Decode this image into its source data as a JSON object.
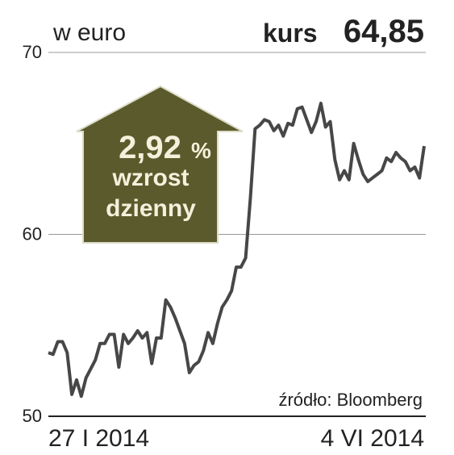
{
  "chart_data": {
    "type": "line",
    "unit_label": "w euro",
    "price_label": "kurs",
    "price_value": "64,85",
    "badge": {
      "value": "2,92",
      "unit": "%",
      "line1": "wzrost",
      "line2": "dzienny"
    },
    "source": "źródło: Bloomberg",
    "categories": [
      "27 I 2014",
      null,
      null,
      null,
      null,
      null,
      null,
      null,
      null,
      null,
      null,
      null,
      null,
      null,
      null,
      null,
      null,
      null,
      null,
      null,
      null,
      null,
      null,
      null,
      null,
      null,
      null,
      null,
      null,
      null,
      null,
      null,
      null,
      null,
      null,
      null,
      null,
      null,
      null,
      null,
      null,
      null,
      null,
      null,
      null,
      null,
      null,
      null,
      null,
      null,
      null,
      null,
      null,
      null,
      null,
      null,
      null,
      null,
      null,
      null,
      null,
      null,
      null,
      null,
      null,
      null,
      null,
      null,
      null,
      null,
      null,
      null,
      null,
      null,
      null,
      null,
      null,
      null,
      null,
      null,
      "4 VI 2014"
    ],
    "values": [
      53.5,
      53.4,
      54.1,
      54.1,
      53.5,
      51.2,
      52.0,
      51.1,
      52.1,
      52.6,
      53.1,
      54.0,
      54.0,
      54.5,
      54.5,
      52.7,
      54.5,
      54.0,
      54.3,
      54.7,
      54.3,
      54.6,
      52.9,
      54.3,
      54.3,
      56.4,
      56.0,
      55.4,
      54.7,
      54.0,
      52.4,
      52.8,
      53.0,
      53.6,
      54.6,
      54.0,
      55.1,
      56.0,
      56.4,
      56.9,
      58.2,
      58.2,
      58.7,
      62.0,
      65.8,
      66.0,
      66.3,
      66.2,
      65.7,
      66.0,
      65.4,
      66.1,
      66.0,
      66.9,
      67.0,
      66.3,
      65.6,
      66.2,
      67.2,
      65.9,
      66.2,
      64.1,
      63.0,
      63.5,
      63.0,
      65.0,
      64.1,
      63.3,
      62.9,
      63.1,
      63.3,
      63.5,
      64.2,
      64.0,
      64.5,
      64.2,
      64.0,
      63.5,
      63.7,
      63.1,
      64.85
    ],
    "color": "#474747",
    "ylim": [
      50,
      70
    ],
    "yticks": [
      50,
      60,
      70
    ],
    "grid": true
  }
}
